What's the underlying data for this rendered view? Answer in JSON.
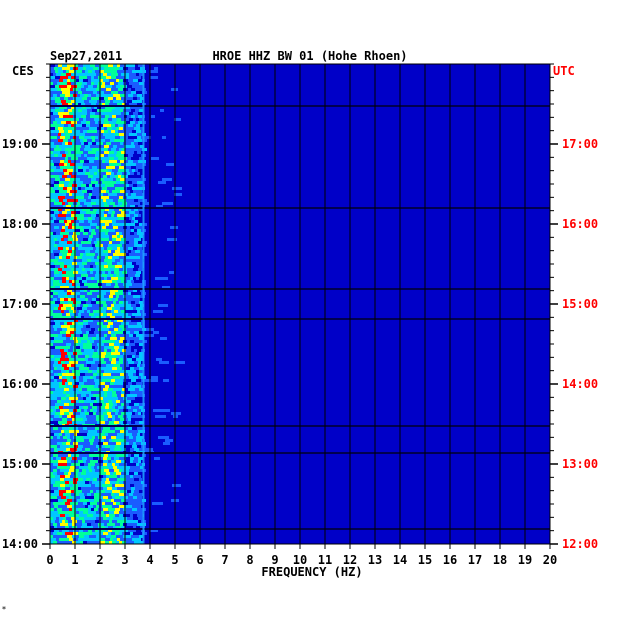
{
  "chart_data": {
    "type": "heatmap",
    "date": "Sep27,2011",
    "title": "HROE HHZ BW 01 (Hohe Rhoen)",
    "xlabel": "FREQUENCY (HZ)",
    "left_timezone": "CES",
    "right_timezone": "UTC",
    "x_ticks": [
      "0",
      "1",
      "2",
      "3",
      "4",
      "5",
      "6",
      "7",
      "8",
      "9",
      "10",
      "11",
      "12",
      "13",
      "14",
      "15",
      "16",
      "17",
      "18",
      "19",
      "20"
    ],
    "xlim": [
      0,
      20
    ],
    "left_time_labels": [
      "19:00",
      "18:00",
      "17:00",
      "16:00",
      "15:00",
      "14:00"
    ],
    "right_time_labels": [
      "17:00",
      "16:00",
      "15:00",
      "14:00",
      "13:00",
      "12:00"
    ],
    "colors": {
      "background": "#0000c8",
      "axis_text_left": "#000000",
      "axis_text_right": "#ff0000",
      "low": "#0000c8",
      "mid": "#00c8ff",
      "high": "#ffff00",
      "peak": "#ff0000"
    }
  }
}
